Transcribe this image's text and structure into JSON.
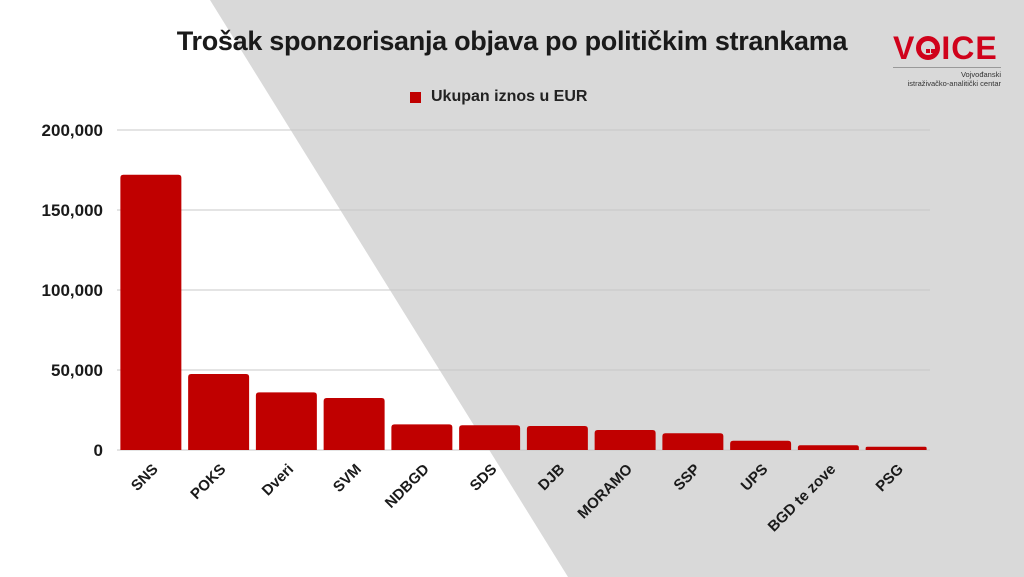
{
  "colors": {
    "bar": "#c00000",
    "background_gray": "#d9d9d9",
    "logo_red": "#d0021b"
  },
  "logo": {
    "word": "VOICE",
    "subtitle_line1": "Vojvođanski",
    "subtitle_line2": "istraživačko-analitički centar"
  },
  "chart_data": {
    "type": "bar",
    "title": "Trošak sponzorisanja objava po političkim strankama",
    "legend_position": "top-center",
    "grid": true,
    "categories": [
      "SNS",
      "POKS",
      "Dveri",
      "SVM",
      "NDBGD",
      "SDS",
      "DJB",
      "MORAMO",
      "SSP",
      "UPS",
      "BGD te zove",
      "PSG"
    ],
    "series": [
      {
        "name": "Ukupan iznos u EUR",
        "values": [
          172000,
          47500,
          36000,
          32500,
          16000,
          15500,
          15000,
          12500,
          10500,
          5800,
          3000,
          2000
        ]
      }
    ],
    "ylim": [
      0,
      200000
    ],
    "yticks": [
      "0",
      "50,000",
      "100,000",
      "150,000",
      "200,000"
    ],
    "ytick_values": [
      0,
      50000,
      100000,
      150000,
      200000
    ]
  }
}
